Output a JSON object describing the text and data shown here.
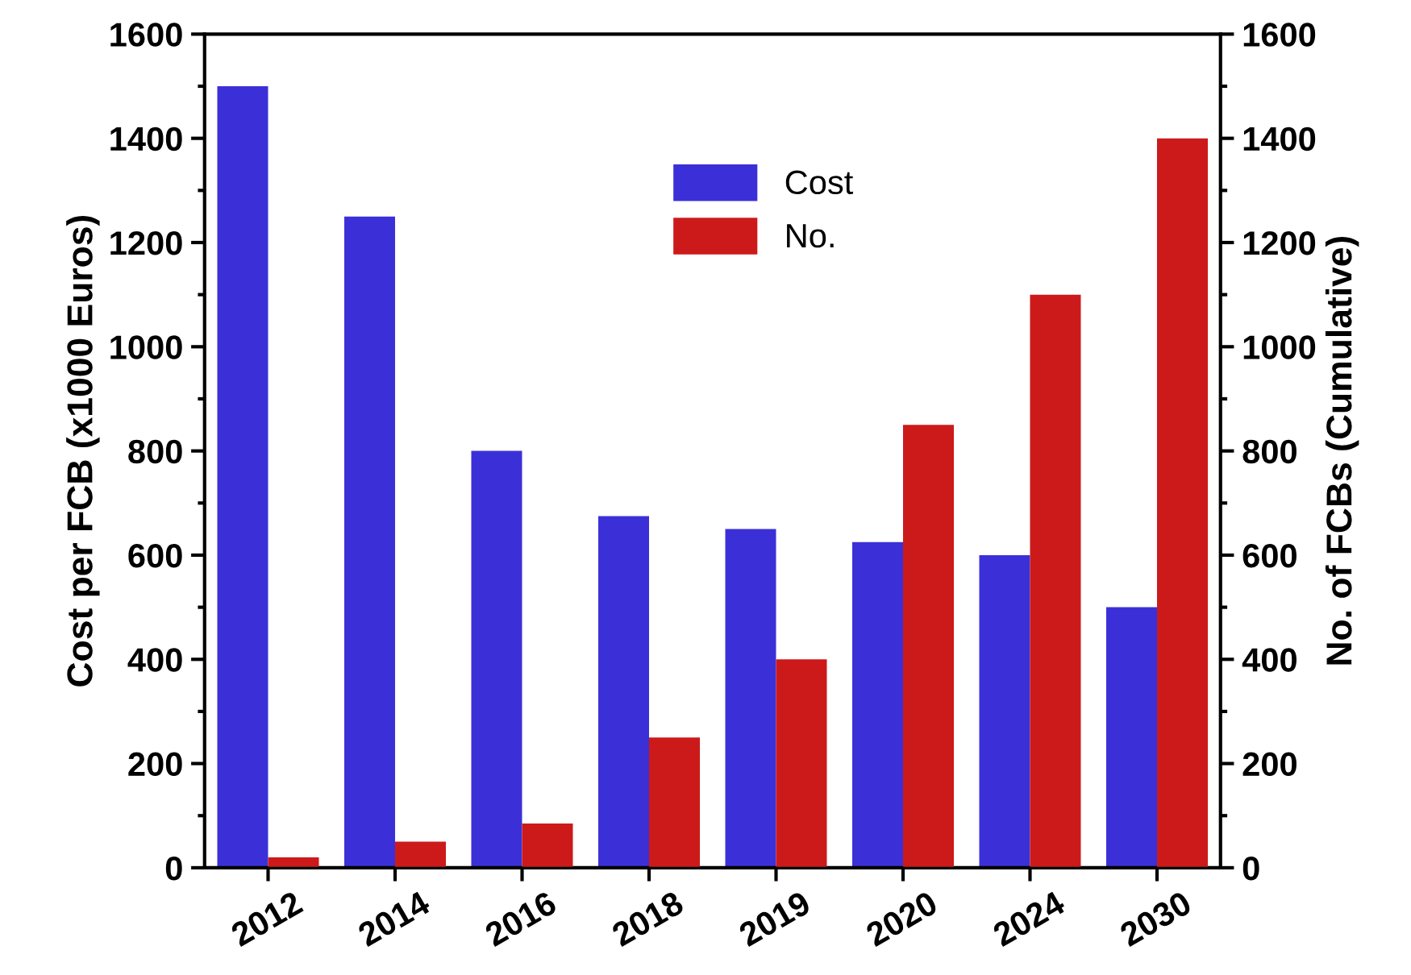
{
  "chart_data": {
    "type": "bar",
    "categories": [
      "2012",
      "2014",
      "2016",
      "2018",
      "2019",
      "2020",
      "2024",
      "2030"
    ],
    "series": [
      {
        "name": "Cost",
        "color": "#3b30d8",
        "values": [
          1500,
          1250,
          800,
          675,
          650,
          625,
          600,
          500
        ]
      },
      {
        "name": "No.",
        "color": "#cc1a1a",
        "axis": "y2",
        "values": [
          20,
          50,
          85,
          250,
          400,
          850,
          1100,
          1400
        ]
      }
    ],
    "ylabel": "Cost per FCB (x1000 Euros)",
    "y2label": "No. of FCBs (Cumulative)",
    "ylim": [
      0,
      1600
    ],
    "yticks": [
      0,
      200,
      400,
      600,
      800,
      1000,
      1200,
      1400,
      1600
    ],
    "y2lim": [
      0,
      1600
    ],
    "y2ticks": [
      0,
      200,
      400,
      600,
      800,
      1000,
      1200,
      1400,
      1600
    ],
    "legend": "top center",
    "grid": false
  }
}
